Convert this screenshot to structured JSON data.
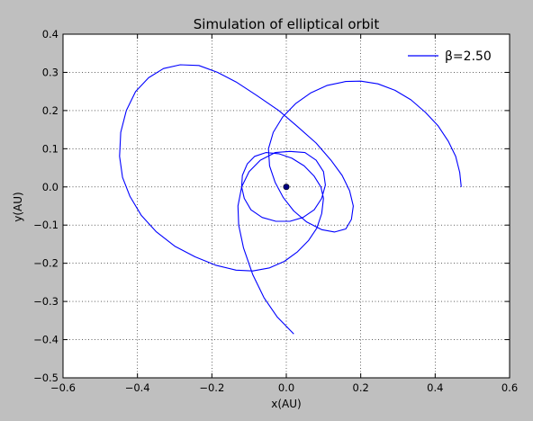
{
  "chart_data": {
    "type": "line",
    "title": "Simulation of elliptical orbit",
    "xlabel": "x(AU)",
    "ylabel": "y(AU)",
    "xlim": [
      -0.6,
      0.6
    ],
    "ylim": [
      -0.5,
      0.4
    ],
    "xticks": [
      -0.6,
      -0.4,
      -0.2,
      0.0,
      0.2,
      0.4,
      0.6
    ],
    "yticks": [
      -0.5,
      -0.4,
      -0.3,
      -0.2,
      -0.1,
      0.0,
      0.1,
      0.2,
      0.3,
      0.4
    ],
    "xtick_labels": [
      "−0.6",
      "−0.4",
      "−0.2",
      "0.0",
      "0.2",
      "0.4",
      "0.6"
    ],
    "ytick_labels": [
      "−0.5",
      "−0.4",
      "−0.3",
      "−0.2",
      "−0.1",
      "0.0",
      "0.1",
      "0.2",
      "0.3",
      "0.4"
    ],
    "grid": true,
    "legend_position": "top-right",
    "series": [
      {
        "name": "β=2.50",
        "color": "#0000ff",
        "x": [
          0.47,
          0.466,
          0.455,
          0.435,
          0.408,
          0.374,
          0.335,
          0.292,
          0.246,
          0.2,
          0.16,
          0.11,
          0.065,
          0.025,
          -0.01,
          -0.035,
          -0.048,
          -0.045,
          -0.03,
          -0.008,
          0.02,
          0.055,
          0.095,
          0.13,
          0.16,
          0.175,
          0.18,
          0.17,
          0.15,
          0.12,
          0.08,
          0.03,
          -0.02,
          -0.08,
          -0.135,
          -0.185,
          -0.235,
          -0.285,
          -0.33,
          -0.37,
          -0.405,
          -0.43,
          -0.445,
          -0.448,
          -0.44,
          -0.42,
          -0.39,
          -0.35,
          -0.3,
          -0.245,
          -0.19,
          -0.135,
          -0.09,
          -0.045,
          -0.005,
          0.03,
          0.06,
          0.082,
          0.095,
          0.1,
          0.093,
          0.075,
          0.048,
          0.015,
          -0.02,
          -0.055,
          -0.085,
          -0.105,
          -0.118,
          -0.12,
          -0.113,
          -0.095,
          -0.065,
          -0.028,
          0.01,
          0.045,
          0.075,
          0.095,
          0.105,
          0.1,
          0.08,
          0.05,
          0.01,
          -0.03,
          -0.07,
          -0.1,
          -0.12,
          -0.13,
          -0.128,
          -0.115,
          -0.09,
          -0.06,
          -0.025,
          0.02
        ],
        "y": [
          0.0,
          0.038,
          0.08,
          0.12,
          0.16,
          0.195,
          0.228,
          0.253,
          0.27,
          0.277,
          0.276,
          0.266,
          0.246,
          0.218,
          0.183,
          0.143,
          0.1,
          0.055,
          0.012,
          -0.028,
          -0.063,
          -0.092,
          -0.112,
          -0.118,
          -0.11,
          -0.085,
          -0.05,
          -0.01,
          0.03,
          0.07,
          0.115,
          0.158,
          0.2,
          0.24,
          0.275,
          0.3,
          0.318,
          0.32,
          0.31,
          0.286,
          0.25,
          0.2,
          0.143,
          0.08,
          0.025,
          -0.025,
          -0.074,
          -0.117,
          -0.155,
          -0.183,
          -0.205,
          -0.218,
          -0.22,
          -0.212,
          -0.195,
          -0.17,
          -0.14,
          -0.108,
          -0.07,
          -0.03,
          0.0,
          0.028,
          0.055,
          0.075,
          0.087,
          0.09,
          0.08,
          0.06,
          0.03,
          0.0,
          -0.03,
          -0.06,
          -0.08,
          -0.09,
          -0.09,
          -0.08,
          -0.06,
          -0.03,
          0.005,
          0.04,
          0.07,
          0.09,
          0.093,
          0.09,
          0.07,
          0.04,
          0.0,
          -0.05,
          -0.1,
          -0.16,
          -0.23,
          -0.29,
          -0.34,
          -0.385
        ]
      }
    ],
    "markers": [
      {
        "name": "central body",
        "x": 0.0,
        "y": 0.0,
        "color": "#000080"
      }
    ]
  }
}
